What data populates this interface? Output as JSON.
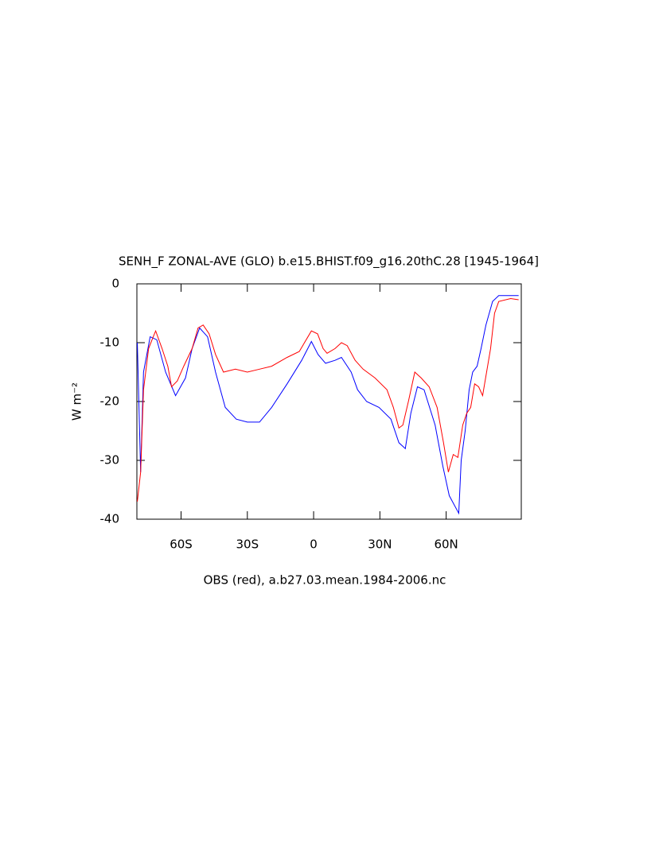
{
  "chart_data": {
    "type": "line",
    "title": "SENH_F ZONAL-AVE (GLO) b.e15.BHIST.f09_g16.20thC.28 [1945-1964]",
    "y_label": "W m⁻²",
    "x_label": "OBS (red), a.b27.03.mean.1984-2006.nc",
    "xlim": [
      -80,
      94
    ],
    "ylim": [
      -40,
      0
    ],
    "xticks": [
      {
        "value": -60,
        "label": "60S"
      },
      {
        "value": -30,
        "label": "30S"
      },
      0,
      {
        "value": 30,
        "label": "30N"
      },
      {
        "value": 60,
        "label": "60N"
      }
    ],
    "yticks": [
      -40,
      -30,
      -20,
      -10,
      0
    ],
    "series": [
      {
        "color": "#0000ff",
        "x": [
          -79.8,
          -78.3,
          -77,
          -74,
          -71,
          -67,
          -62.5,
          -58,
          -55,
          -51.6,
          -48,
          -44.4,
          -40,
          -35,
          -30,
          -24.5,
          -19,
          -12,
          -5.4,
          -1,
          2,
          5.4,
          9.7,
          12.6,
          17,
          19.9,
          24,
          29.6,
          35,
          38.6,
          41.5,
          44,
          47,
          50,
          55,
          58.5,
          61.4,
          65.7,
          66.8,
          68.6,
          70.4,
          72,
          74,
          75.8,
          78,
          81,
          83.8,
          89.2,
          92.8
        ],
        "values": [
          -10,
          -32,
          -15,
          -9,
          -9.5,
          -15,
          -19,
          -16,
          -11,
          -7.5,
          -9,
          -15,
          -21,
          -23,
          -23.5,
          -23.5,
          -21,
          -17,
          -13,
          -9.8,
          -12,
          -13.5,
          -13,
          -12.5,
          -15,
          -18,
          -20,
          -21,
          -23,
          -27,
          -28,
          -22,
          -17.5,
          -18,
          -24,
          -31,
          -36,
          -39,
          -30,
          -25,
          -18,
          -15,
          -14,
          -11,
          -7,
          -3,
          -2,
          -2,
          -2
        ]
      },
      {
        "color": "#ff0000",
        "x": [
          -79.8,
          -78.3,
          -77,
          -74.7,
          -72.6,
          -71.5,
          -68.6,
          -66,
          -64.3,
          -61.7,
          -58.8,
          -55,
          -52.3,
          -50,
          -47.3,
          -44.4,
          -40.8,
          -35.4,
          -30,
          -24.5,
          -19,
          -12,
          -6.5,
          -1,
          1.8,
          4.3,
          6.1,
          9.7,
          12.6,
          15.2,
          18.8,
          22.4,
          27.8,
          33.2,
          36.1,
          38.6,
          40.4,
          42.9,
          45.8,
          48.7,
          52.3,
          55.9,
          58.8,
          61,
          63.2,
          65.3,
          67.5,
          69.3,
          71.1,
          72.9,
          74.7,
          76.5,
          78.3,
          80.1,
          81.9,
          83.8,
          89.2,
          92.8
        ],
        "values": [
          -37,
          -32,
          -18,
          -11,
          -9,
          -8,
          -11,
          -14,
          -17.5,
          -16.5,
          -14,
          -11,
          -7.5,
          -7,
          -8.5,
          -12,
          -15,
          -14.5,
          -15,
          -14.5,
          -14,
          -12.5,
          -11.5,
          -8,
          -8.5,
          -11,
          -11.8,
          -11,
          -10,
          -10.5,
          -13,
          -14.5,
          -16,
          -18,
          -21,
          -24.5,
          -24,
          -20,
          -15,
          -16,
          -17.5,
          -21,
          -27,
          -32,
          -29,
          -29.5,
          -24,
          -22,
          -21,
          -17,
          -17.5,
          -19,
          -15,
          -11,
          -5,
          -3,
          -2.5,
          -2.7
        ]
      }
    ]
  }
}
